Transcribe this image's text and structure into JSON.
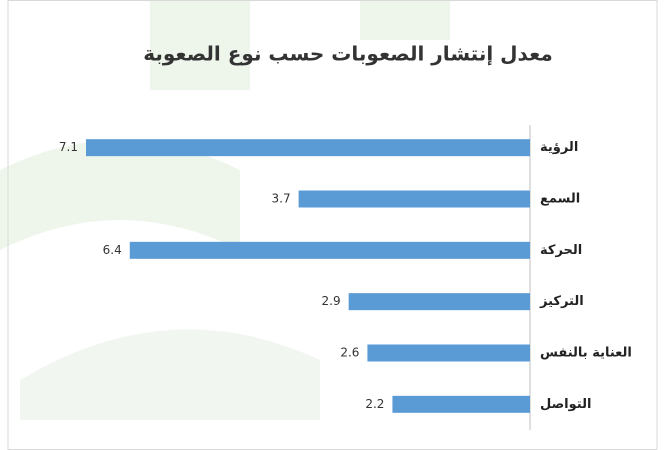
{
  "chart_data": {
    "type": "bar",
    "orientation": "horizontal",
    "title": "معدل إنتشار الصعوبات حسب نوع الصعوبة",
    "categories": [
      "الرؤية",
      "السمع",
      "الحركة",
      "التركيز",
      "العناية بالنفس",
      "التواصل"
    ],
    "values": [
      7.1,
      3.7,
      6.4,
      2.9,
      2.6,
      2.2
    ],
    "color": "#5b9bd5"
  }
}
